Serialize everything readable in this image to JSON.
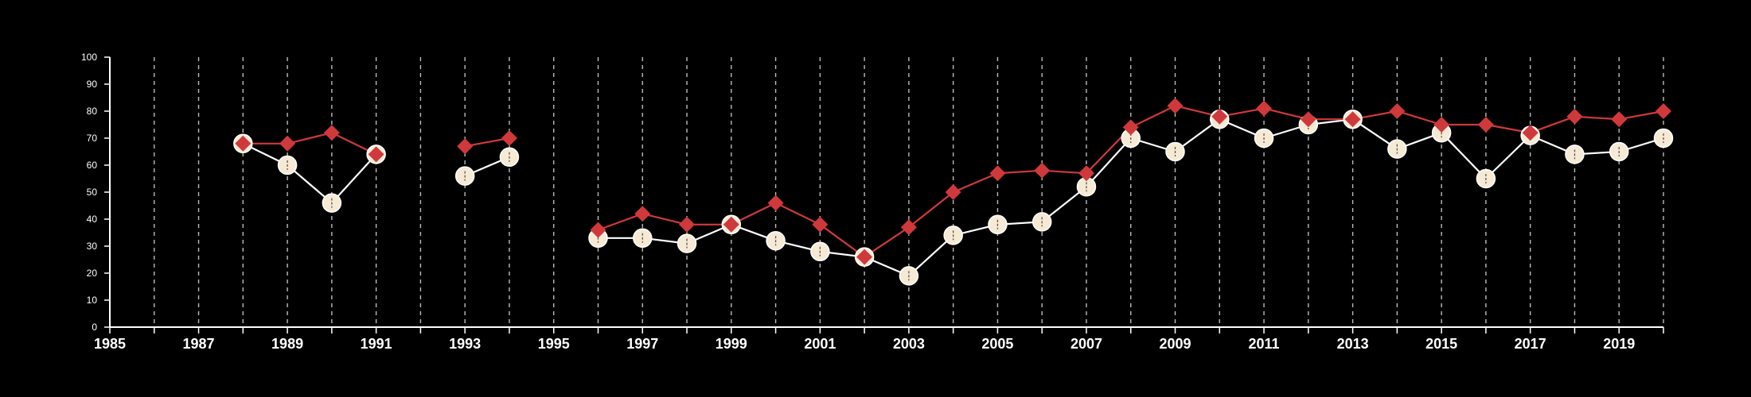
{
  "chart_data": {
    "type": "line",
    "title": "",
    "xlabel": "",
    "ylabel": "",
    "xlim": [
      1985,
      2020
    ],
    "ylim": [
      0,
      100
    ],
    "x_ticks": [
      1985,
      1987,
      1989,
      1991,
      1993,
      1995,
      1997,
      1999,
      2001,
      2003,
      2005,
      2007,
      2009,
      2011,
      2013,
      2015,
      2017,
      2019
    ],
    "y_ticks": [
      0,
      10,
      20,
      30,
      40,
      50,
      60,
      70,
      80,
      90,
      100
    ],
    "vertical_grid": "dashed, every year from 1986 to 2020",
    "legend": "none",
    "colors": {
      "background": "#000000",
      "axis": "#ffffff",
      "grid": "#bbbbbb",
      "series_diamond": "#d0393b",
      "series_circle": "#f6ead5"
    },
    "x": [
      1985,
      1986,
      1987,
      1988,
      1989,
      1990,
      1991,
      1992,
      1993,
      1994,
      1995,
      1996,
      1997,
      1998,
      1999,
      2000,
      2001,
      2002,
      2003,
      2004,
      2005,
      2006,
      2007,
      2008,
      2009,
      2010,
      2011,
      2012,
      2013,
      2014,
      2015,
      2016,
      2017,
      2018,
      2019,
      2020
    ],
    "series": [
      {
        "marker": "circle",
        "line_color": "#ffffff",
        "values": [
          null,
          null,
          null,
          68,
          60,
          46,
          64,
          null,
          56,
          63,
          null,
          33,
          33,
          31,
          38,
          32,
          28,
          26,
          19,
          34,
          38,
          39,
          52,
          70,
          65,
          77,
          70,
          75,
          77,
          66,
          72,
          55,
          71,
          64,
          65,
          70
        ]
      },
      {
        "marker": "diamond",
        "line_color": "#d0393b",
        "values": [
          null,
          null,
          null,
          68,
          68,
          72,
          64,
          null,
          67,
          70,
          null,
          36,
          42,
          38,
          38,
          46,
          38,
          26,
          37,
          50,
          57,
          58,
          57,
          74,
          82,
          78,
          81,
          77,
          77,
          80,
          75,
          75,
          72,
          78,
          77,
          80
        ]
      }
    ]
  }
}
